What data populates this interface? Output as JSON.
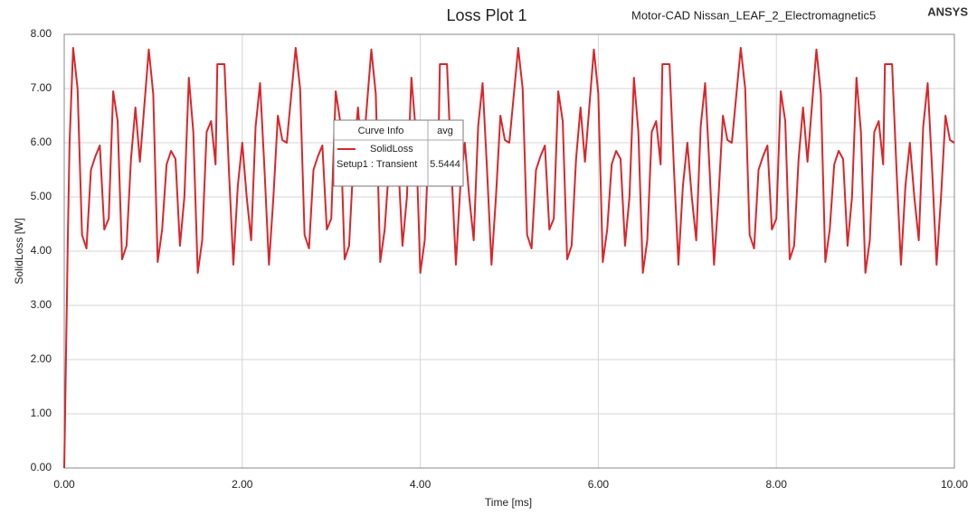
{
  "chart_data": {
    "type": "line",
    "title": "Loss Plot 1",
    "subtitle": "Motor-CAD Nissan_LEAF_2_Electromagnetic5",
    "brand": "ANSYS",
    "x_label": "Time [ms]",
    "y_label": "SolidLoss [W]",
    "xlim": [
      0,
      10
    ],
    "ylim": [
      0,
      8
    ],
    "xticks": [
      {
        "value": 0,
        "label": "0.00"
      },
      {
        "value": 2,
        "label": "2.00"
      },
      {
        "value": 4,
        "label": "4.00"
      },
      {
        "value": 6,
        "label": "6.00"
      },
      {
        "value": 8,
        "label": "8.00"
      },
      {
        "value": 10,
        "label": "10.00"
      }
    ],
    "yticks": [
      {
        "value": 0,
        "label": "0.00"
      },
      {
        "value": 1,
        "label": "1.00"
      },
      {
        "value": 2,
        "label": "2.00"
      },
      {
        "value": 3,
        "label": "3.00"
      },
      {
        "value": 4,
        "label": "4.00"
      },
      {
        "value": 5,
        "label": "5.00"
      },
      {
        "value": 6,
        "label": "6.00"
      },
      {
        "value": 7,
        "label": "7.00"
      },
      {
        "value": 8,
        "label": "8.00"
      }
    ],
    "grid": true,
    "x": [
      0,
      0.01,
      0.02,
      0.03,
      0.04,
      0.06,
      0.1,
      0.15,
      0.2,
      0.25,
      0.3,
      0.35,
      0.4,
      0.45,
      0.5,
      0.55,
      0.6,
      0.65,
      0.7,
      0.75,
      0.8,
      0.85,
      0.95,
      1.0,
      1.05,
      1.1,
      1.15,
      1.2,
      1.25,
      1.3,
      1.35,
      1.4,
      1.45,
      1.5,
      1.55,
      1.6,
      1.65,
      1.7,
      1.72,
      1.8,
      1.85,
      1.9,
      1.95,
      2.0,
      2.05,
      2.1,
      2.15,
      2.2,
      2.25,
      2.3,
      2.35,
      2.4,
      2.45,
      2.5,
      2.6,
      2.65,
      2.7,
      2.75,
      2.8,
      2.85,
      2.9,
      2.95,
      3.0,
      3.05,
      3.1,
      3.15,
      3.2,
      3.25,
      3.3,
      3.35,
      3.45,
      3.5,
      3.55,
      3.6,
      3.65,
      3.7,
      3.75,
      3.8,
      3.85,
      3.9,
      3.95,
      4.0,
      4.05,
      4.1,
      4.15,
      4.2,
      4.22,
      4.3,
      4.35,
      4.4,
      4.45,
      4.5,
      4.55,
      4.6,
      4.65,
      4.7,
      4.75,
      4.8,
      4.85,
      4.9,
      4.95,
      5.0,
      5.1,
      5.15,
      5.2,
      5.25,
      5.3,
      5.35,
      5.4,
      5.45,
      5.5,
      5.55,
      5.6,
      5.65,
      5.7,
      5.75,
      5.8,
      5.85,
      5.95,
      6.0,
      6.05,
      6.1,
      6.15,
      6.2,
      6.25,
      6.3,
      6.35,
      6.4,
      6.45,
      6.5,
      6.55,
      6.6,
      6.65,
      6.7,
      6.72,
      6.8,
      6.85,
      6.9,
      6.95,
      7.0,
      7.05,
      7.1,
      7.15,
      7.2,
      7.25,
      7.3,
      7.35,
      7.4,
      7.45,
      7.5,
      7.6,
      7.65,
      7.7,
      7.75,
      7.8,
      7.85,
      7.9,
      7.95,
      8.0,
      8.05,
      8.1,
      8.15,
      8.2,
      8.25,
      8.3,
      8.35,
      8.45,
      8.5,
      8.55,
      8.6,
      8.65,
      8.7,
      8.75,
      8.8,
      8.85,
      8.9,
      8.95,
      9.0,
      9.05,
      9.1,
      9.15,
      9.2,
      9.22,
      9.3,
      9.35,
      9.4,
      9.45,
      9.5,
      9.55,
      9.6,
      9.65,
      9.7,
      9.75,
      9.8,
      9.85,
      9.9,
      9.95,
      10.0
    ],
    "series": [
      {
        "name": "SolidLoss",
        "color": "#d9262b",
        "values": [
          0,
          1.0,
          2.1,
          3.1,
          4.2,
          6.0,
          7.75,
          7.0,
          4.3,
          4.05,
          5.5,
          5.75,
          5.95,
          4.4,
          4.6,
          6.95,
          6.4,
          3.85,
          4.1,
          5.7,
          6.65,
          5.65,
          7.72,
          6.9,
          3.8,
          4.4,
          5.6,
          5.85,
          5.7,
          4.1,
          5.0,
          7.2,
          6.2,
          3.6,
          4.2,
          6.2,
          6.4,
          5.6,
          7.45,
          7.45,
          5.5,
          3.75,
          5.2,
          6.0,
          5.0,
          4.2,
          6.3,
          7.1,
          5.5,
          3.75,
          5.0,
          6.5,
          6.05,
          6.0,
          7.75,
          7.0,
          4.3,
          4.05,
          5.5,
          5.75,
          5.95,
          4.4,
          4.6,
          6.95,
          6.4,
          3.85,
          4.1,
          5.7,
          6.65,
          5.65,
          7.72,
          6.9,
          3.8,
          4.4,
          5.6,
          5.85,
          5.7,
          4.1,
          5.0,
          7.2,
          6.2,
          3.6,
          4.2,
          6.2,
          6.4,
          5.6,
          7.45,
          7.45,
          5.5,
          3.75,
          5.2,
          6.0,
          5.0,
          4.2,
          6.3,
          7.1,
          5.5,
          3.75,
          5.0,
          6.5,
          6.05,
          6.0,
          7.75,
          7.0,
          4.3,
          4.05,
          5.5,
          5.75,
          5.95,
          4.4,
          4.6,
          6.95,
          6.4,
          3.85,
          4.1,
          5.7,
          6.65,
          5.65,
          7.72,
          6.9,
          3.8,
          4.4,
          5.6,
          5.85,
          5.7,
          4.1,
          5.0,
          7.2,
          6.2,
          3.6,
          4.2,
          6.2,
          6.4,
          5.6,
          7.45,
          7.45,
          5.5,
          3.75,
          5.2,
          6.0,
          5.0,
          4.2,
          6.3,
          7.1,
          5.5,
          3.75,
          5.0,
          6.5,
          6.05,
          6.0,
          7.75,
          7.0,
          4.3,
          4.05,
          5.5,
          5.75,
          5.95,
          4.4,
          4.6,
          6.95,
          6.4,
          3.85,
          4.1,
          5.7,
          6.65,
          5.65,
          7.72,
          6.9,
          3.8,
          4.4,
          5.6,
          5.85,
          5.7,
          4.1,
          5.0,
          7.2,
          6.2,
          3.6,
          4.2,
          6.2,
          6.4,
          5.6,
          7.45,
          7.45,
          5.5,
          3.75,
          5.2,
          6.0,
          5.0,
          4.2,
          6.3,
          7.1,
          5.5,
          3.75,
          5.0,
          6.5,
          6.05,
          6.0
        ]
      }
    ],
    "legend": {
      "header": "Curve Info",
      "column": "avg",
      "setup": "Setup1 : Transient",
      "avg": 5.5444
    }
  }
}
